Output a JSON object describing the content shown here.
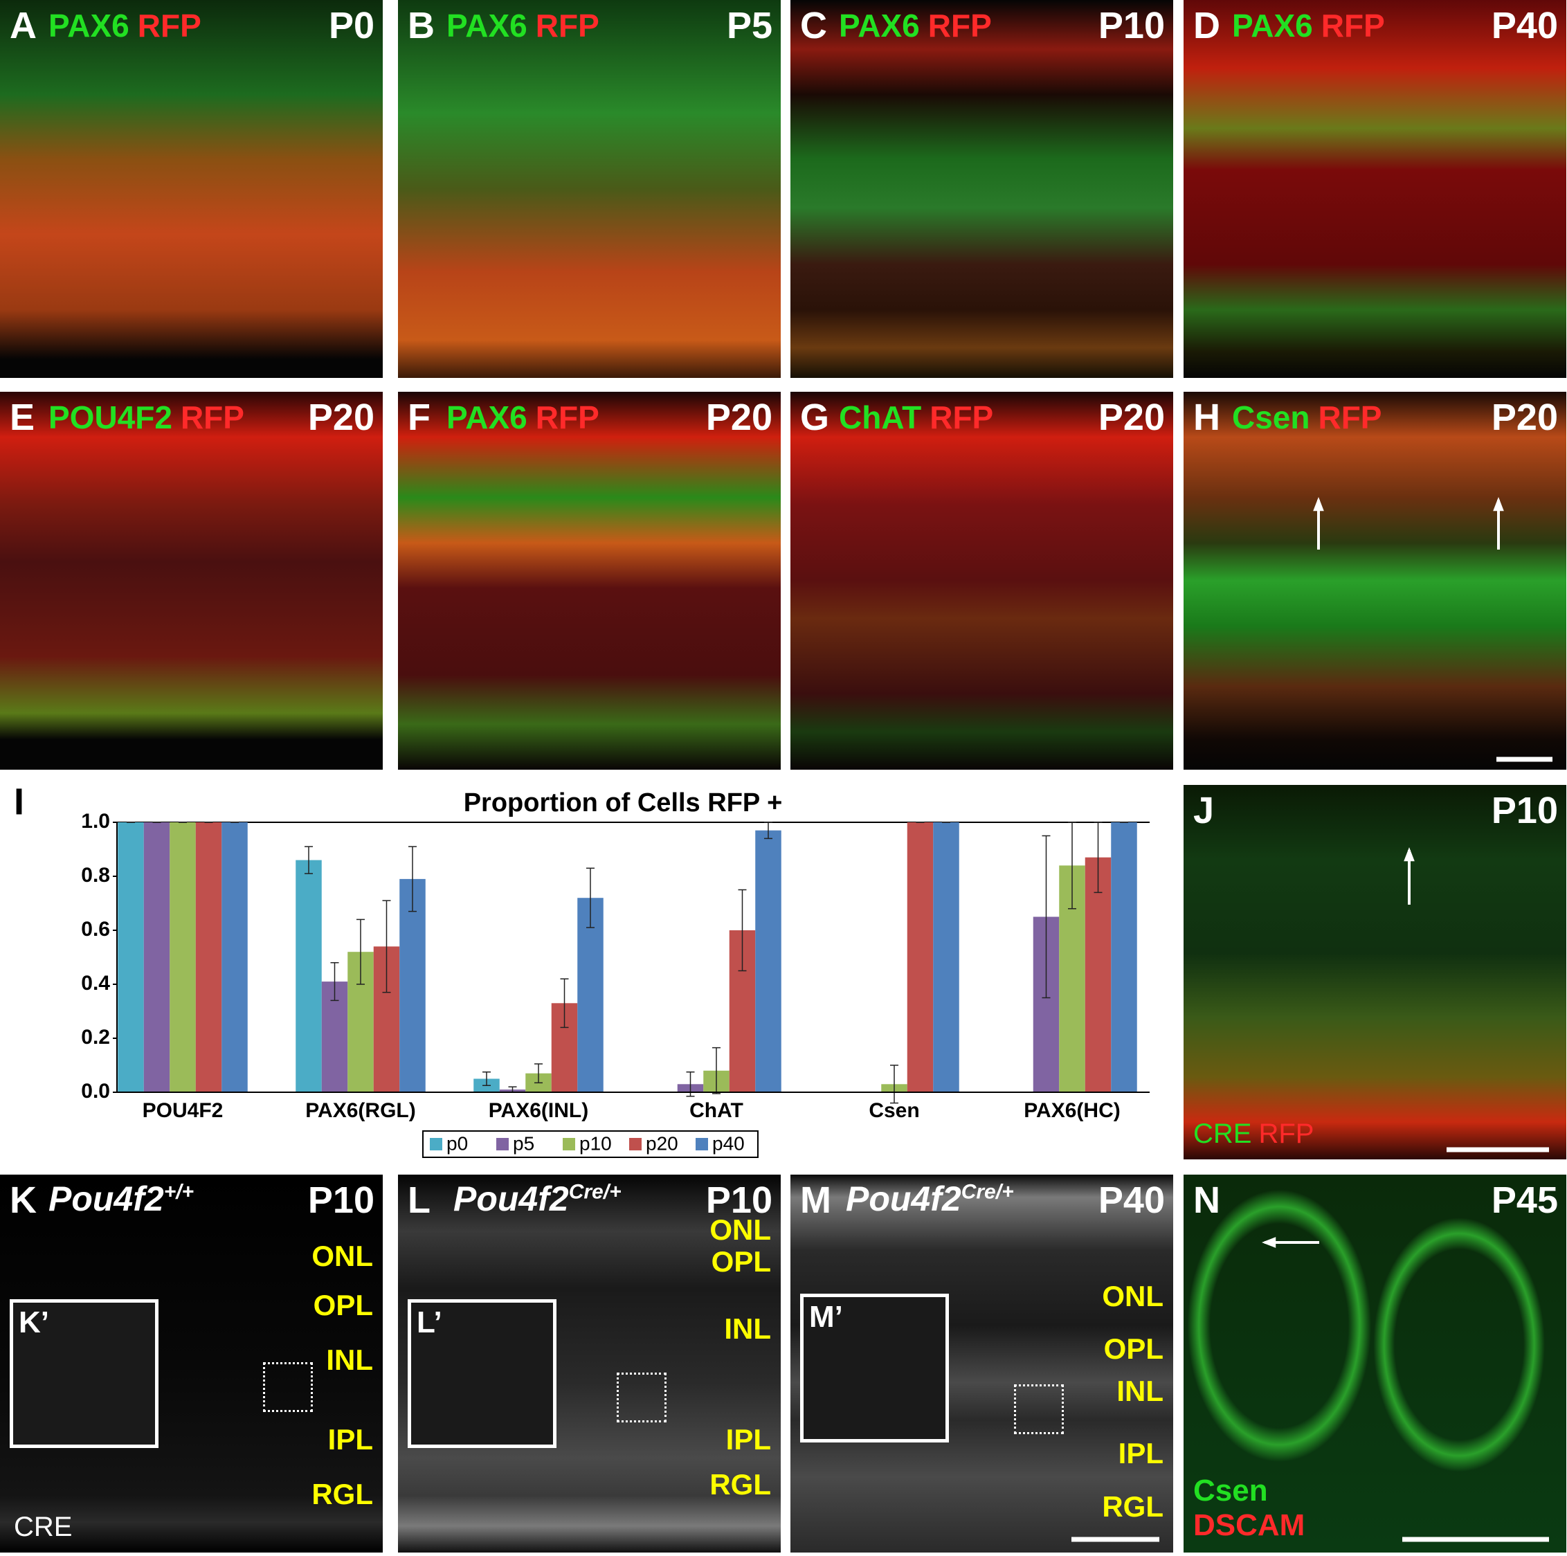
{
  "panels": [
    {
      "label": "A",
      "stain": [
        {
          "text": "PAX6",
          "color": "#22e022"
        },
        {
          "text": "RFP",
          "color": "#ff2a2a"
        }
      ],
      "stage": "P0"
    },
    {
      "label": "B",
      "stain": [
        {
          "text": "PAX6",
          "color": "#22e022"
        },
        {
          "text": "RFP",
          "color": "#ff2a2a"
        }
      ],
      "stage": "P5"
    },
    {
      "label": "C",
      "stain": [
        {
          "text": "PAX6",
          "color": "#22e022"
        },
        {
          "text": "RFP",
          "color": "#ff2a2a"
        }
      ],
      "stage": "P10"
    },
    {
      "label": "D",
      "stain": [
        {
          "text": "PAX6",
          "color": "#22e022"
        },
        {
          "text": "RFP",
          "color": "#ff2a2a"
        }
      ],
      "stage": "P40"
    },
    {
      "label": "E",
      "stain": [
        {
          "text": "POU4F2",
          "color": "#22e022"
        },
        {
          "text": "RFP",
          "color": "#ff2a2a"
        }
      ],
      "stage": "P20"
    },
    {
      "label": "F",
      "stain": [
        {
          "text": "PAX6",
          "color": "#22e022"
        },
        {
          "text": "RFP",
          "color": "#ff2a2a"
        }
      ],
      "stage": "P20"
    },
    {
      "label": "G",
      "stain": [
        {
          "text": "ChAT",
          "color": "#22e022"
        },
        {
          "text": "RFP",
          "color": "#ff2a2a"
        }
      ],
      "stage": "P20"
    },
    {
      "label": "H",
      "stain": [
        {
          "text": "Csen",
          "color": "#22e022"
        },
        {
          "text": "RFP",
          "color": "#ff2a2a"
        }
      ],
      "stage": "P20"
    },
    {
      "label": "J",
      "stain": [
        {
          "text": "CRE",
          "color": "#22e022"
        },
        {
          "text": "RFP",
          "color": "#ff2a2a"
        }
      ],
      "stage": "P10"
    },
    {
      "label": "K",
      "genotype": {
        "gene": "Pou4f2",
        "allele": "+/+"
      },
      "stage": "P10",
      "layers": [
        "ONL",
        "OPL",
        "INL",
        "IPL",
        "RGL"
      ],
      "inset": "K’",
      "footer": "CRE"
    },
    {
      "label": "L",
      "genotype": {
        "gene": "Pou4f2",
        "allele": "Cre/+"
      },
      "stage": "P10",
      "layers": [
        "ONL",
        "OPL",
        "INL",
        "IPL",
        "RGL"
      ],
      "inset": "L’"
    },
    {
      "label": "M",
      "genotype": {
        "gene": "Pou4f2",
        "allele": "Cre/+"
      },
      "stage": "P40",
      "layers": [
        "ONL",
        "OPL",
        "INL",
        "IPL",
        "RGL"
      ],
      "inset": "M’"
    },
    {
      "label": "N",
      "stain": [
        {
          "text": "Csen",
          "color": "#22e022"
        },
        {
          "text": "DSCAM",
          "color": "#ff2a2a"
        }
      ],
      "stage": "P45"
    }
  ],
  "chart_data": {
    "type": "bar",
    "label": "I",
    "title": "Proportion of Cells RFP +",
    "categories": [
      "POU4F2",
      "PAX6(RGL)",
      "PAX6(INL)",
      "ChAT",
      "Csen",
      "PAX6(HC)"
    ],
    "series": [
      {
        "name": "p0",
        "color": "#4bacc6",
        "values": [
          1,
          0.86,
          0.05,
          null,
          null,
          null
        ],
        "errors": [
          0,
          0.05,
          0.025,
          null,
          null,
          null
        ]
      },
      {
        "name": "p5",
        "color": "#8064a2",
        "values": [
          1,
          0.41,
          0.01,
          0.03,
          null,
          0.65
        ],
        "errors": [
          0,
          0.07,
          0.01,
          0.045,
          null,
          0.3
        ]
      },
      {
        "name": "p10",
        "color": "#9bbb59",
        "values": [
          1,
          0.52,
          0.07,
          0.08,
          0.03,
          0.84
        ],
        "errors": [
          0,
          0.12,
          0.035,
          0.085,
          0.07,
          0.16
        ]
      },
      {
        "name": "p20",
        "color": "#c0504d",
        "values": [
          1,
          0.54,
          0.33,
          0.6,
          1,
          0.87
        ],
        "errors": [
          0,
          0.17,
          0.09,
          0.15,
          0,
          0.13
        ]
      },
      {
        "name": "p40",
        "color": "#4f81bd",
        "values": [
          1,
          0.79,
          0.72,
          0.97,
          1,
          1
        ],
        "errors": [
          0,
          0.12,
          0.11,
          0.03,
          0,
          0
        ]
      }
    ],
    "ylim": [
      0,
      1
    ],
    "yticks": [
      {
        "value": 0,
        "label": "0.0"
      },
      0.2,
      0.4,
      0.6,
      0.8,
      {
        "value": 1,
        "label": "1.0"
      }
    ],
    "legend": "bottom"
  }
}
